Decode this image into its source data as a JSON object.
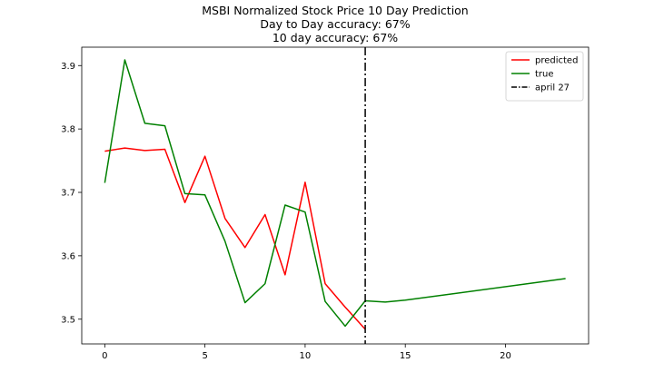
{
  "chart_data": {
    "type": "line",
    "title_lines": [
      "MSBI Normalized Stock Price 10 Day Prediction",
      "Day to Day accuracy: 67%",
      "10 day accuracy: 67%"
    ],
    "xlabel": "",
    "ylabel": "",
    "xlim": [
      -1.15,
      24.15
    ],
    "ylim": [
      3.461,
      3.929
    ],
    "xticks": [
      0,
      5,
      10,
      15,
      20
    ],
    "yticks": [
      3.5,
      3.6,
      3.7,
      3.8,
      3.9
    ],
    "series": [
      {
        "name": "predicted",
        "color": "#ff0000",
        "x": [
          0,
          1,
          2,
          3,
          4,
          5,
          6,
          7,
          8,
          9,
          10,
          11,
          12,
          13
        ],
        "values": [
          3.765,
          3.77,
          3.766,
          3.768,
          3.684,
          3.757,
          3.659,
          3.613,
          3.665,
          3.57,
          3.716,
          3.556,
          3.519,
          3.484
        ]
      },
      {
        "name": "true",
        "color": "#008000",
        "x": [
          0,
          1,
          2,
          3,
          4,
          5,
          6,
          7,
          8,
          9,
          10,
          11,
          12,
          13,
          14,
          15,
          23
        ],
        "values": [
          3.715,
          3.909,
          3.809,
          3.805,
          3.698,
          3.696,
          3.623,
          3.526,
          3.556,
          3.68,
          3.669,
          3.528,
          3.489,
          3.529,
          3.527,
          3.53,
          3.564
        ]
      }
    ],
    "vline": {
      "name": "april 27",
      "x": 13,
      "color": "#000000",
      "style": "dashdot"
    },
    "legend_position": "top-right",
    "grid": false
  }
}
